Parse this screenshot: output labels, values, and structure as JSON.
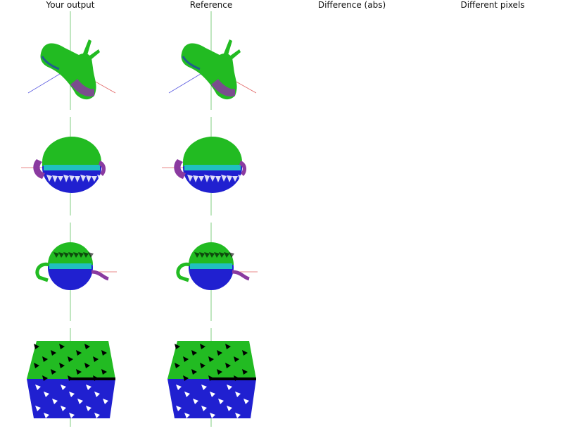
{
  "headers": {
    "your_output": "Your output",
    "reference": "Reference",
    "difference": "Difference (abs)",
    "different_pixels": "Different pixels"
  },
  "colors": {
    "axis_x": "#e06060",
    "axis_y": "#60c060",
    "axis_z": "#5a5ae0",
    "green": "#22bb22",
    "blue": "#2020d0",
    "purple": "#8a3aa0",
    "cyan": "#20c0c0",
    "black": "#000000"
  },
  "rows": [
    {
      "name": "snail"
    },
    {
      "name": "teapot-sphere"
    },
    {
      "name": "teapot-front"
    },
    {
      "name": "cube"
    }
  ]
}
